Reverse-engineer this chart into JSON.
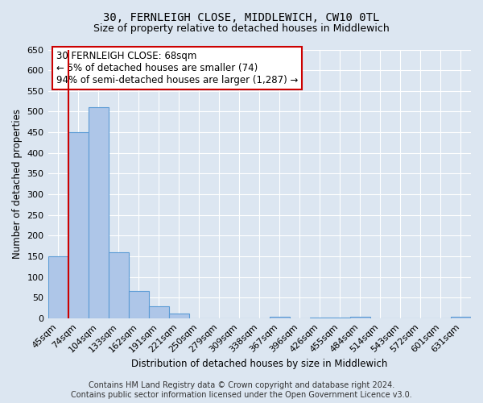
{
  "title": "30, FERNLEIGH CLOSE, MIDDLEWICH, CW10 0TL",
  "subtitle": "Size of property relative to detached houses in Middlewich",
  "xlabel": "Distribution of detached houses by size in Middlewich",
  "ylabel": "Number of detached properties",
  "bar_labels": [
    "45sqm",
    "74sqm",
    "104sqm",
    "133sqm",
    "162sqm",
    "191sqm",
    "221sqm",
    "250sqm",
    "279sqm",
    "309sqm",
    "338sqm",
    "367sqm",
    "396sqm",
    "426sqm",
    "455sqm",
    "484sqm",
    "514sqm",
    "543sqm",
    "572sqm",
    "601sqm",
    "631sqm"
  ],
  "bar_heights": [
    150,
    450,
    510,
    160,
    67,
    30,
    12,
    0,
    0,
    0,
    0,
    5,
    0,
    3,
    3,
    5,
    0,
    0,
    0,
    0,
    5
  ],
  "bar_color": "#aec6e8",
  "bar_edge_color": "#5b9bd5",
  "ylim": [
    0,
    650
  ],
  "yticks": [
    0,
    50,
    100,
    150,
    200,
    250,
    300,
    350,
    400,
    450,
    500,
    550,
    600,
    650
  ],
  "vline_color": "#cc0000",
  "annotation_text_line1": "30 FERNLEIGH CLOSE: 68sqm",
  "annotation_text_line2": "← 5% of detached houses are smaller (74)",
  "annotation_text_line3": "94% of semi-detached houses are larger (1,287) →",
  "annotation_box_color": "#ffffff",
  "annotation_box_edge_color": "#cc0000",
  "footer_line1": "Contains HM Land Registry data © Crown copyright and database right 2024.",
  "footer_line2": "Contains public sector information licensed under the Open Government Licence v3.0.",
  "background_color": "#dce6f1",
  "plot_background_color": "#dce6f1",
  "grid_color": "#ffffff",
  "title_fontsize": 10,
  "subtitle_fontsize": 9,
  "axis_label_fontsize": 8.5,
  "tick_fontsize": 8,
  "annotation_fontsize": 8.5,
  "footer_fontsize": 7
}
